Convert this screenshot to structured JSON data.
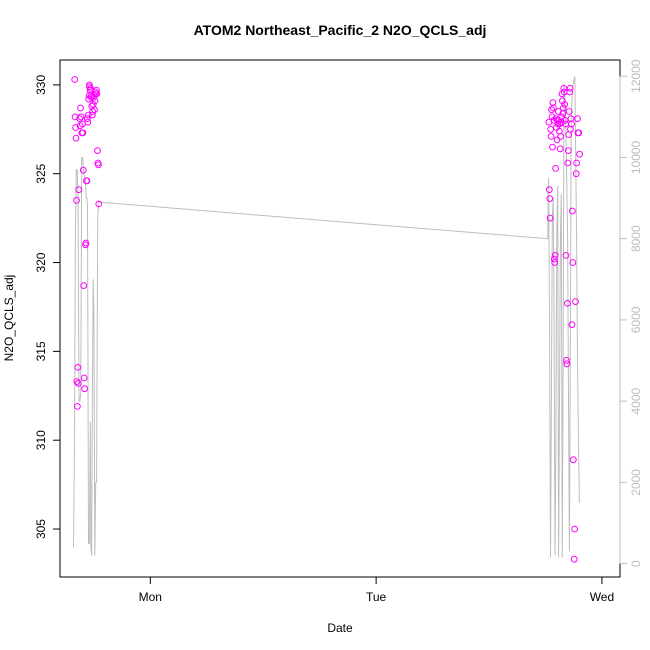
{
  "chart_data": {
    "type": "scatter",
    "title": "ATOM2 Northeast_Pacific_2 N2O_QCLS_adj",
    "xlabel": "Date",
    "ylabel": "N2O_QCLS_adj",
    "x_ticks": [
      {
        "label": "Mon",
        "value": 1.0
      },
      {
        "label": "Tue",
        "value": 2.0
      },
      {
        "label": "Wed",
        "value": 3.0
      }
    ],
    "xlim": [
      0.6,
      3.08
    ],
    "y_ticks": [
      305,
      310,
      315,
      320,
      325,
      330
    ],
    "ylim": [
      302.3,
      331.4
    ],
    "y2_ticks": [
      0,
      2000,
      4000,
      6000,
      8000,
      10000,
      12000
    ],
    "y2lim": [
      -330,
      12400
    ],
    "grid": false,
    "colors": {
      "points": "#ff00ff",
      "line": "#bdbdbd",
      "axis": "#000000",
      "axis2": "#bdbdbd"
    },
    "series": [
      {
        "values": [
          [
            0.665,
            330.3
          ],
          [
            0.667,
            328.2
          ],
          [
            0.669,
            327.6
          ],
          [
            0.671,
            327.0
          ],
          [
            0.673,
            323.5
          ],
          [
            0.675,
            313.3
          ],
          [
            0.677,
            311.9
          ],
          [
            0.679,
            314.1
          ],
          [
            0.681,
            313.2
          ],
          [
            0.683,
            324.1
          ],
          [
            0.687,
            328.1
          ],
          [
            0.689,
            327.7
          ],
          [
            0.691,
            328.7
          ],
          [
            0.693,
            328.2
          ],
          [
            0.697,
            327.3
          ],
          [
            0.699,
            327.8
          ],
          [
            0.701,
            327.3
          ],
          [
            0.703,
            325.2
          ],
          [
            0.705,
            318.7
          ],
          [
            0.707,
            313.5
          ],
          [
            0.709,
            312.9
          ],
          [
            0.713,
            321.0
          ],
          [
            0.715,
            321.1
          ],
          [
            0.717,
            324.6
          ],
          [
            0.719,
            324.6
          ],
          [
            0.721,
            328.1
          ],
          [
            0.723,
            327.9
          ],
          [
            0.725,
            328.3
          ],
          [
            0.727,
            329.2
          ],
          [
            0.729,
            329.4
          ],
          [
            0.73,
            330.0
          ],
          [
            0.731,
            329.9
          ],
          [
            0.733,
            329.7
          ],
          [
            0.735,
            329.8
          ],
          [
            0.737,
            329.4
          ],
          [
            0.739,
            329.3
          ],
          [
            0.741,
            328.8
          ],
          [
            0.743,
            328.3
          ],
          [
            0.745,
            328.5
          ],
          [
            0.747,
            328.9
          ],
          [
            0.749,
            329.3
          ],
          [
            0.751,
            329.4
          ],
          [
            0.753,
            328.6
          ],
          [
            0.755,
            329.1
          ],
          [
            0.757,
            329.6
          ],
          [
            0.759,
            329.5
          ],
          [
            0.761,
            329.7
          ],
          [
            0.763,
            329.5
          ],
          [
            0.766,
            326.3
          ],
          [
            0.768,
            325.6
          ],
          [
            0.77,
            325.5
          ],
          [
            0.772,
            323.3
          ],
          [
            2.765,
            327.9
          ],
          [
            2.767,
            324.1
          ],
          [
            2.769,
            323.6
          ],
          [
            2.771,
            322.5
          ],
          [
            2.773,
            327.5
          ],
          [
            2.775,
            327.1
          ],
          [
            2.777,
            328.6
          ],
          [
            2.779,
            328.2
          ],
          [
            2.781,
            326.5
          ],
          [
            2.783,
            329.0
          ],
          [
            2.785,
            328.7
          ],
          [
            2.787,
            328.0
          ],
          [
            2.789,
            320.2
          ],
          [
            2.791,
            320.0
          ],
          [
            2.793,
            320.4
          ],
          [
            2.795,
            325.3
          ],
          [
            2.797,
            328.1
          ],
          [
            2.799,
            327.6
          ],
          [
            2.801,
            326.9
          ],
          [
            2.803,
            328.0
          ],
          [
            2.805,
            327.8
          ],
          [
            2.807,
            328.5
          ],
          [
            2.809,
            328.0
          ],
          [
            2.811,
            327.4
          ],
          [
            2.813,
            327.8
          ],
          [
            2.815,
            326.4
          ],
          [
            2.817,
            327.1
          ],
          [
            2.819,
            327.9
          ],
          [
            2.821,
            328.2
          ],
          [
            2.823,
            329.5
          ],
          [
            2.825,
            329.1
          ],
          [
            2.827,
            328.4
          ],
          [
            2.829,
            328.7
          ],
          [
            2.831,
            329.8
          ],
          [
            2.833,
            329.6
          ],
          [
            2.835,
            328.9
          ],
          [
            2.837,
            328.0
          ],
          [
            2.839,
            327.8
          ],
          [
            2.841,
            320.4
          ],
          [
            2.843,
            314.5
          ],
          [
            2.845,
            314.3
          ],
          [
            2.847,
            317.7
          ],
          [
            2.849,
            325.6
          ],
          [
            2.851,
            326.3
          ],
          [
            2.853,
            327.2
          ],
          [
            2.855,
            328.5
          ],
          [
            2.857,
            329.6
          ],
          [
            2.859,
            329.8
          ],
          [
            2.861,
            327.5
          ],
          [
            2.863,
            328.1
          ],
          [
            2.865,
            327.8
          ],
          [
            2.867,
            316.5
          ],
          [
            2.869,
            322.9
          ],
          [
            2.871,
            320.0
          ],
          [
            2.873,
            308.9
          ],
          [
            2.877,
            303.3
          ],
          [
            2.879,
            305.0
          ],
          [
            2.883,
            317.8
          ],
          [
            2.886,
            325.0
          ],
          [
            2.888,
            325.6
          ],
          [
            2.892,
            328.1
          ],
          [
            2.894,
            327.3
          ],
          [
            2.897,
            327.3
          ],
          [
            2.901,
            326.1
          ]
        ]
      },
      {
        "axis": "right",
        "values": [
          [
            0.66,
            400
          ],
          [
            0.664,
            3000
          ],
          [
            0.668,
            8000
          ],
          [
            0.672,
            9700
          ],
          [
            0.676,
            9700
          ],
          [
            0.68,
            9000
          ],
          [
            0.684,
            4000
          ],
          [
            0.688,
            4000
          ],
          [
            0.692,
            4200
          ],
          [
            0.696,
            10000
          ],
          [
            0.7,
            10000
          ],
          [
            0.704,
            9700
          ],
          [
            0.708,
            9500
          ],
          [
            0.712,
            9500
          ],
          [
            0.716,
            9000
          ],
          [
            0.719,
            9000
          ],
          [
            0.722,
            8800
          ],
          [
            0.726,
            500
          ],
          [
            0.73,
            500
          ],
          [
            0.734,
            3500
          ],
          [
            0.737,
            400
          ],
          [
            0.74,
            200
          ],
          [
            0.744,
            4600
          ],
          [
            0.747,
            7000
          ],
          [
            0.75,
            6200
          ],
          [
            0.754,
            200
          ],
          [
            0.758,
            2000
          ],
          [
            0.762,
            2000
          ],
          [
            0.767,
            8500
          ],
          [
            0.772,
            8900
          ],
          [
            2.76,
            8000
          ],
          [
            2.764,
            9500
          ],
          [
            2.768,
            6000
          ],
          [
            2.772,
            150
          ],
          [
            2.776,
            4000
          ],
          [
            2.78,
            8500
          ],
          [
            2.784,
            9000
          ],
          [
            2.788,
            6000
          ],
          [
            2.792,
            200
          ],
          [
            2.796,
            3000
          ],
          [
            2.8,
            8200
          ],
          [
            2.804,
            9300
          ],
          [
            2.808,
            150
          ],
          [
            2.812,
            4000
          ],
          [
            2.816,
            8000
          ],
          [
            2.82,
            9100
          ],
          [
            2.824,
            150
          ],
          [
            2.828,
            5000
          ],
          [
            2.832,
            11800
          ],
          [
            2.836,
            11500
          ],
          [
            2.84,
            10800
          ],
          [
            2.844,
            9500
          ],
          [
            2.848,
            8000
          ],
          [
            2.852,
            4000
          ],
          [
            2.856,
            300
          ],
          [
            2.86,
            5000
          ],
          [
            2.864,
            11000
          ],
          [
            2.868,
            11500
          ],
          [
            2.872,
            11800
          ],
          [
            2.876,
            11900
          ],
          [
            2.88,
            12000
          ],
          [
            2.884,
            10000
          ],
          [
            2.888,
            8000
          ],
          [
            2.892,
            5000
          ],
          [
            2.896,
            3000
          ],
          [
            2.9,
            1500
          ]
        ]
      }
    ]
  }
}
